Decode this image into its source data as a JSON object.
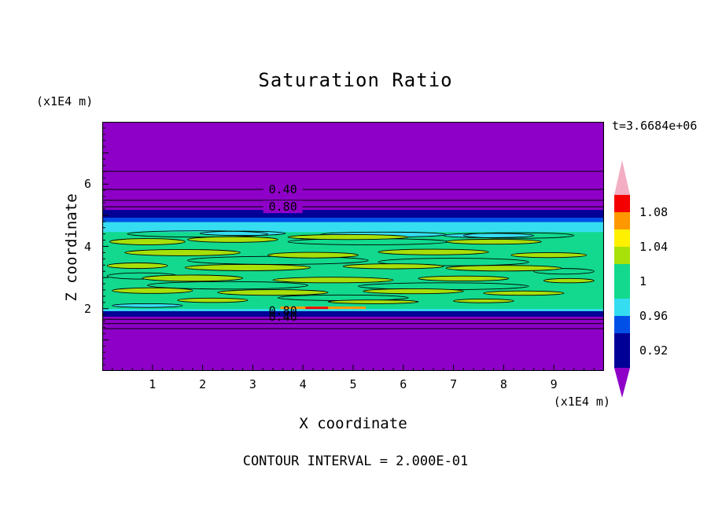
{
  "title": "Saturation Ratio",
  "time_label": "t=3.6684e+06",
  "footer": "CONTOUR INTERVAL = 2.000E-01",
  "y_axis": {
    "unit": "(x1E4 m)",
    "label": "Z coordinate"
  },
  "x_axis": {
    "unit": "(x1E4 m)",
    "label": "X coordinate"
  },
  "chart_data": {
    "type": "contour",
    "title": "Saturation Ratio",
    "xlabel": "X coordinate",
    "ylabel": "Z coordinate",
    "axis_units": "x1E4 m",
    "time": "t=3.6684e+06",
    "contour_interval": 0.2,
    "x_range": [
      0,
      10
    ],
    "z_range": [
      0,
      8
    ],
    "x_ticks": [
      1,
      2,
      3,
      4,
      5,
      6,
      7,
      8,
      9
    ],
    "z_ticks": [
      2,
      4,
      6
    ],
    "colors": {
      "purple": "#8E00C8",
      "navy": "#000096",
      "blue": "#0050E8",
      "cyan": "#35DDF0",
      "green": "#12D98E",
      "yellow_green": "#A8E00A",
      "yellow": "#FFF000",
      "orange": "#FF9800",
      "red": "#F40000",
      "pink": "#F3AEC3"
    },
    "bands": [
      {
        "z": [
          4.9,
          5.17
        ],
        "color": "navy"
      },
      {
        "z": [
          4.76,
          4.92
        ],
        "color": "blue"
      },
      {
        "z": [
          4.42,
          4.78
        ],
        "color": "cyan"
      },
      {
        "z": [
          1.97,
          4.46
        ],
        "color": "green"
      },
      {
        "z": [
          1.9,
          1.99
        ],
        "color": "cyan"
      },
      {
        "z": [
          1.74,
          1.92
        ],
        "color": "navy"
      },
      {
        "z": [
          1.99,
          2.07
        ],
        "x": [
          3.55,
          5.25
        ],
        "color": "orange"
      },
      {
        "z": [
          1.99,
          2.06
        ],
        "x": [
          4.05,
          4.5
        ],
        "color": "red"
      }
    ],
    "contour_lines": [
      6.41,
      5.83,
      5.48,
      5.27,
      1.66,
      1.52,
      1.36
    ],
    "contour_labels": [
      {
        "text": "0.40",
        "x": 3.6,
        "z": 5.83,
        "bg": "purple"
      },
      {
        "text": "0.80",
        "x": 3.6,
        "z": 5.27,
        "bg": "purple"
      },
      {
        "text": "0.80",
        "x": 3.6,
        "z": 1.93
      },
      {
        "text": "0.40",
        "x": 3.6,
        "z": 1.74
      }
    ],
    "blobs": [
      {
        "x": 2.8,
        "z": 4.42,
        "rx": 0.85,
        "rz": 0.07,
        "fill": "cyan"
      },
      {
        "x": 5.6,
        "z": 4.38,
        "rx": 1.25,
        "rz": 0.08,
        "fill": "cyan"
      },
      {
        "x": 7.7,
        "z": 4.35,
        "rx": 0.9,
        "rz": 0.07,
        "fill": "cyan"
      },
      {
        "x": 0.9,
        "z": 2.1,
        "rx": 0.7,
        "rz": 0.06,
        "fill": "cyan"
      },
      {
        "x": 1.9,
        "z": 4.4,
        "rx": 1.4,
        "rz": 0.1
      },
      {
        "x": 5.3,
        "z": 4.15,
        "rx": 1.6,
        "rz": 0.1
      },
      {
        "x": 8.3,
        "z": 4.35,
        "rx": 1.1,
        "rz": 0.09
      },
      {
        "x": 3.5,
        "z": 3.55,
        "rx": 1.8,
        "rz": 0.13
      },
      {
        "x": 7.0,
        "z": 3.5,
        "rx": 1.5,
        "rz": 0.12
      },
      {
        "x": 2.5,
        "z": 2.75,
        "rx": 1.6,
        "rz": 0.12
      },
      {
        "x": 6.8,
        "z": 2.72,
        "rx": 1.7,
        "rz": 0.11
      },
      {
        "x": 4.8,
        "z": 2.35,
        "rx": 1.3,
        "rz": 0.09
      },
      {
        "x": 0.8,
        "z": 3.05,
        "rx": 0.7,
        "rz": 0.1
      },
      {
        "x": 9.2,
        "z": 3.2,
        "rx": 0.6,
        "rz": 0.09
      },
      {
        "x": 0.9,
        "z": 4.15,
        "rx": 0.75,
        "rz": 0.1,
        "fill": "yellow_green"
      },
      {
        "x": 2.6,
        "z": 4.22,
        "rx": 0.9,
        "rz": 0.09,
        "fill": "yellow_green"
      },
      {
        "x": 4.9,
        "z": 4.3,
        "rx": 1.2,
        "rz": 0.08,
        "fill": "yellow_green"
      },
      {
        "x": 7.8,
        "z": 4.15,
        "rx": 0.95,
        "rz": 0.08,
        "fill": "yellow_green"
      },
      {
        "x": 1.6,
        "z": 3.8,
        "rx": 1.15,
        "rz": 0.1,
        "fill": "yellow_green"
      },
      {
        "x": 4.2,
        "z": 3.72,
        "rx": 0.9,
        "rz": 0.09,
        "fill": "yellow_green"
      },
      {
        "x": 6.6,
        "z": 3.82,
        "rx": 1.1,
        "rz": 0.09,
        "fill": "yellow_green"
      },
      {
        "x": 8.9,
        "z": 3.72,
        "rx": 0.75,
        "rz": 0.08,
        "fill": "yellow_green"
      },
      {
        "x": 0.7,
        "z": 3.38,
        "rx": 0.6,
        "rz": 0.09,
        "fill": "yellow_green"
      },
      {
        "x": 2.9,
        "z": 3.32,
        "rx": 1.25,
        "rz": 0.1,
        "fill": "yellow_green"
      },
      {
        "x": 5.8,
        "z": 3.36,
        "rx": 1.0,
        "rz": 0.08,
        "fill": "yellow_green"
      },
      {
        "x": 8.0,
        "z": 3.3,
        "rx": 1.15,
        "rz": 0.09,
        "fill": "yellow_green"
      },
      {
        "x": 1.8,
        "z": 2.98,
        "rx": 1.0,
        "rz": 0.1,
        "fill": "yellow_green"
      },
      {
        "x": 4.6,
        "z": 2.92,
        "rx": 1.2,
        "rz": 0.09,
        "fill": "yellow_green"
      },
      {
        "x": 7.2,
        "z": 2.97,
        "rx": 0.9,
        "rz": 0.08,
        "fill": "yellow_green"
      },
      {
        "x": 9.3,
        "z": 2.9,
        "rx": 0.5,
        "rz": 0.07,
        "fill": "yellow_green"
      },
      {
        "x": 1.0,
        "z": 2.58,
        "rx": 0.8,
        "rz": 0.09,
        "fill": "yellow_green"
      },
      {
        "x": 3.4,
        "z": 2.52,
        "rx": 1.1,
        "rz": 0.09,
        "fill": "yellow_green"
      },
      {
        "x": 6.2,
        "z": 2.56,
        "rx": 1.0,
        "rz": 0.08,
        "fill": "yellow_green"
      },
      {
        "x": 8.4,
        "z": 2.5,
        "rx": 0.8,
        "rz": 0.07,
        "fill": "yellow_green"
      },
      {
        "x": 2.2,
        "z": 2.27,
        "rx": 0.7,
        "rz": 0.07,
        "fill": "yellow_green"
      },
      {
        "x": 5.4,
        "z": 2.22,
        "rx": 0.9,
        "rz": 0.06,
        "fill": "yellow_green"
      },
      {
        "x": 7.6,
        "z": 2.25,
        "rx": 0.6,
        "rz": 0.06,
        "fill": "yellow_green"
      }
    ],
    "colorbar": {
      "arrow_high_color": "#F3AEC3",
      "arrow_low_color": "#8E00C8",
      "value_max": 1.1,
      "value_min": 0.9,
      "segments": [
        {
          "range": [
            1.08,
            1.1
          ],
          "color": "red"
        },
        {
          "range": [
            1.06,
            1.08
          ],
          "color": "orange"
        },
        {
          "range": [
            1.04,
            1.06
          ],
          "color": "yellow"
        },
        {
          "range": [
            1.02,
            1.04
          ],
          "color": "yellow_green"
        },
        {
          "range": [
            0.98,
            1.02
          ],
          "color": "green"
        },
        {
          "range": [
            0.96,
            0.98
          ],
          "color": "cyan"
        },
        {
          "range": [
            0.94,
            0.96
          ],
          "color": "blue"
        },
        {
          "range": [
            0.9,
            0.94
          ],
          "color": "navy"
        }
      ],
      "tick_labels": [
        "1.08",
        "1.04",
        "1",
        "0.96",
        "0.92"
      ]
    }
  }
}
